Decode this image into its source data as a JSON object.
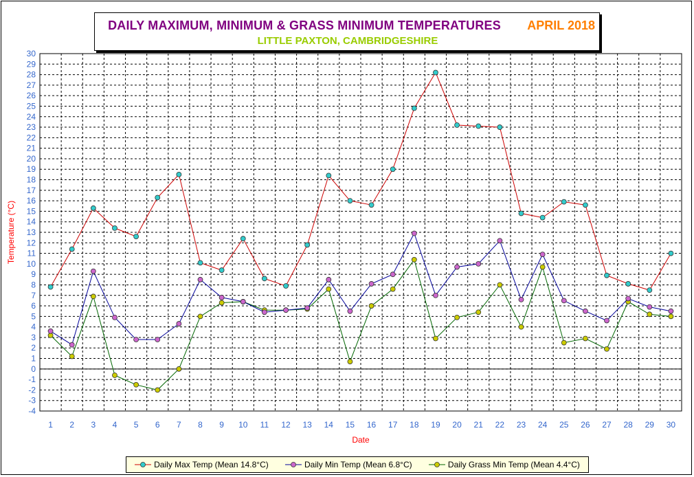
{
  "title": {
    "main": "DAILY MAXIMUM, MINIMUM & GRASS MINIMUM TEMPERATURES",
    "date": "APRIL 2018",
    "subtitle": "LITTLE PAXTON, CAMBRIDGESHIRE"
  },
  "chart_data": {
    "type": "line",
    "xlabel": "Date",
    "ylabel": "Temperature (°C)",
    "ylim": [
      -4,
      30
    ],
    "ystep": 1,
    "grid": true,
    "legend_position": "bottom",
    "x": [
      1,
      2,
      3,
      4,
      5,
      6,
      7,
      8,
      9,
      10,
      11,
      12,
      13,
      14,
      15,
      16,
      17,
      18,
      19,
      20,
      21,
      22,
      23,
      24,
      25,
      26,
      27,
      28,
      29,
      30
    ],
    "series": [
      {
        "name": "Daily Max Temp (Mean 14.8°C)",
        "line_color": "#cc0000",
        "marker_color": "#33cccc",
        "values": [
          7.8,
          11.4,
          15.3,
          13.4,
          12.6,
          16.3,
          18.5,
          10.1,
          9.4,
          12.4,
          8.6,
          7.9,
          11.8,
          18.4,
          16.0,
          15.6,
          19.0,
          24.8,
          28.2,
          23.2,
          23.1,
          23.0,
          14.8,
          14.4,
          15.9,
          15.6,
          8.9,
          8.1,
          7.5,
          11.0
        ]
      },
      {
        "name": "Daily Min Temp (Mean 6.8°C)",
        "line_color": "#000099",
        "marker_color": "#cc66cc",
        "values": [
          3.6,
          2.3,
          9.3,
          4.9,
          2.8,
          2.8,
          4.3,
          8.5,
          6.8,
          6.4,
          5.4,
          5.6,
          5.8,
          8.5,
          5.5,
          8.1,
          9.0,
          12.9,
          7.0,
          9.7,
          10.0,
          12.2,
          6.6,
          10.9,
          6.5,
          5.5,
          4.6,
          6.7,
          5.9,
          5.5
        ]
      },
      {
        "name": "Daily Grass Min Temp (Mean 4.4°C)",
        "line_color": "#006600",
        "marker_color": "#cccc00",
        "values": [
          3.2,
          1.2,
          6.9,
          -0.6,
          -1.5,
          -2.0,
          0.0,
          5.0,
          6.3,
          6.4,
          5.6,
          5.6,
          5.7,
          7.6,
          0.7,
          6.0,
          7.6,
          10.4,
          2.9,
          4.9,
          5.4,
          8.0,
          4.0,
          9.7,
          2.5,
          2.9,
          1.9,
          6.4,
          5.2,
          5.0
        ]
      }
    ]
  }
}
